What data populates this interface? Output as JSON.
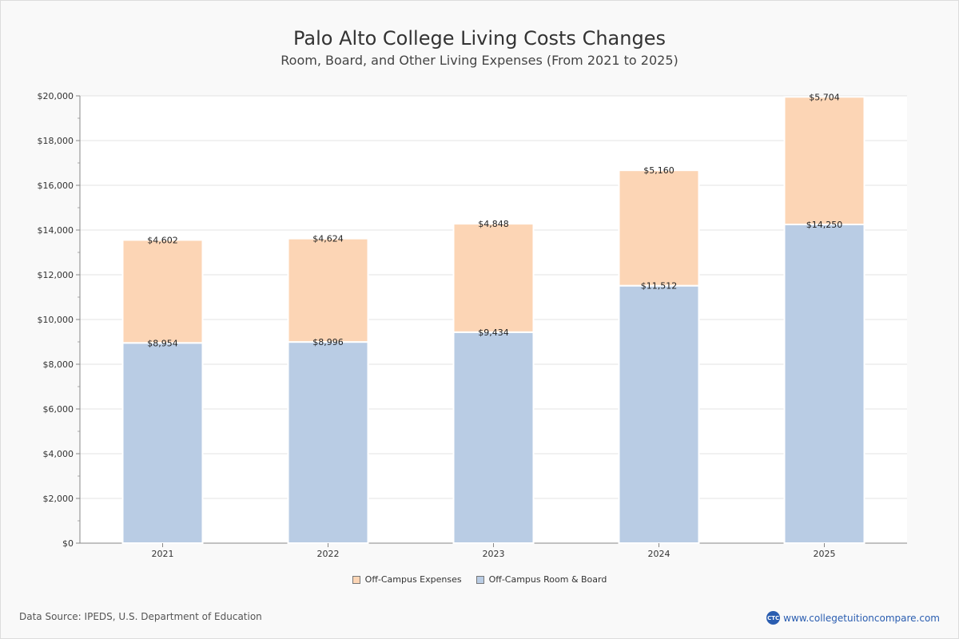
{
  "title": "Palo Alto College Living Costs Changes",
  "subtitle": "Room, Board, and Other Living Expenses (From 2021 to 2025)",
  "chart_data": {
    "type": "bar",
    "stacked": true,
    "categories": [
      "2021",
      "2022",
      "2023",
      "2024",
      "2025"
    ],
    "series": [
      {
        "name": "Off-Campus Room & Board",
        "values": [
          8954,
          8996,
          9434,
          11512,
          14250
        ],
        "labels": [
          "$8,954",
          "$8,996",
          "$9,434",
          "$11,512",
          "$14,250"
        ],
        "color": "#b9cce4"
      },
      {
        "name": "Off-Campus Expenses",
        "values": [
          4602,
          4624,
          4848,
          5160,
          5704
        ],
        "labels": [
          "$4,602",
          "$4,624",
          "$4,848",
          "$5,160",
          "$5,704"
        ],
        "color": "#fcd5b5"
      }
    ],
    "ylim": [
      0,
      20000
    ],
    "yticks": [
      0,
      2000,
      4000,
      6000,
      8000,
      10000,
      12000,
      14000,
      16000,
      18000,
      20000
    ],
    "ytick_labels": [
      "$0",
      "$2,000",
      "$4,000",
      "$6,000",
      "$8,000",
      "$10,000",
      "$12,000",
      "$14,000",
      "$16,000",
      "$18,000",
      "$20,000"
    ],
    "grid": true,
    "legend": "bottom-center"
  },
  "legend": {
    "items": [
      {
        "label": "Off-Campus Expenses",
        "color": "#fcd5b5"
      },
      {
        "label": "Off-Campus Room & Board",
        "color": "#b9cce4"
      }
    ]
  },
  "footer": {
    "source": "Data Source: IPEDS, U.S. Department of Education",
    "logo_text": "CTC",
    "website": "www.collegetuitioncompare.com"
  }
}
